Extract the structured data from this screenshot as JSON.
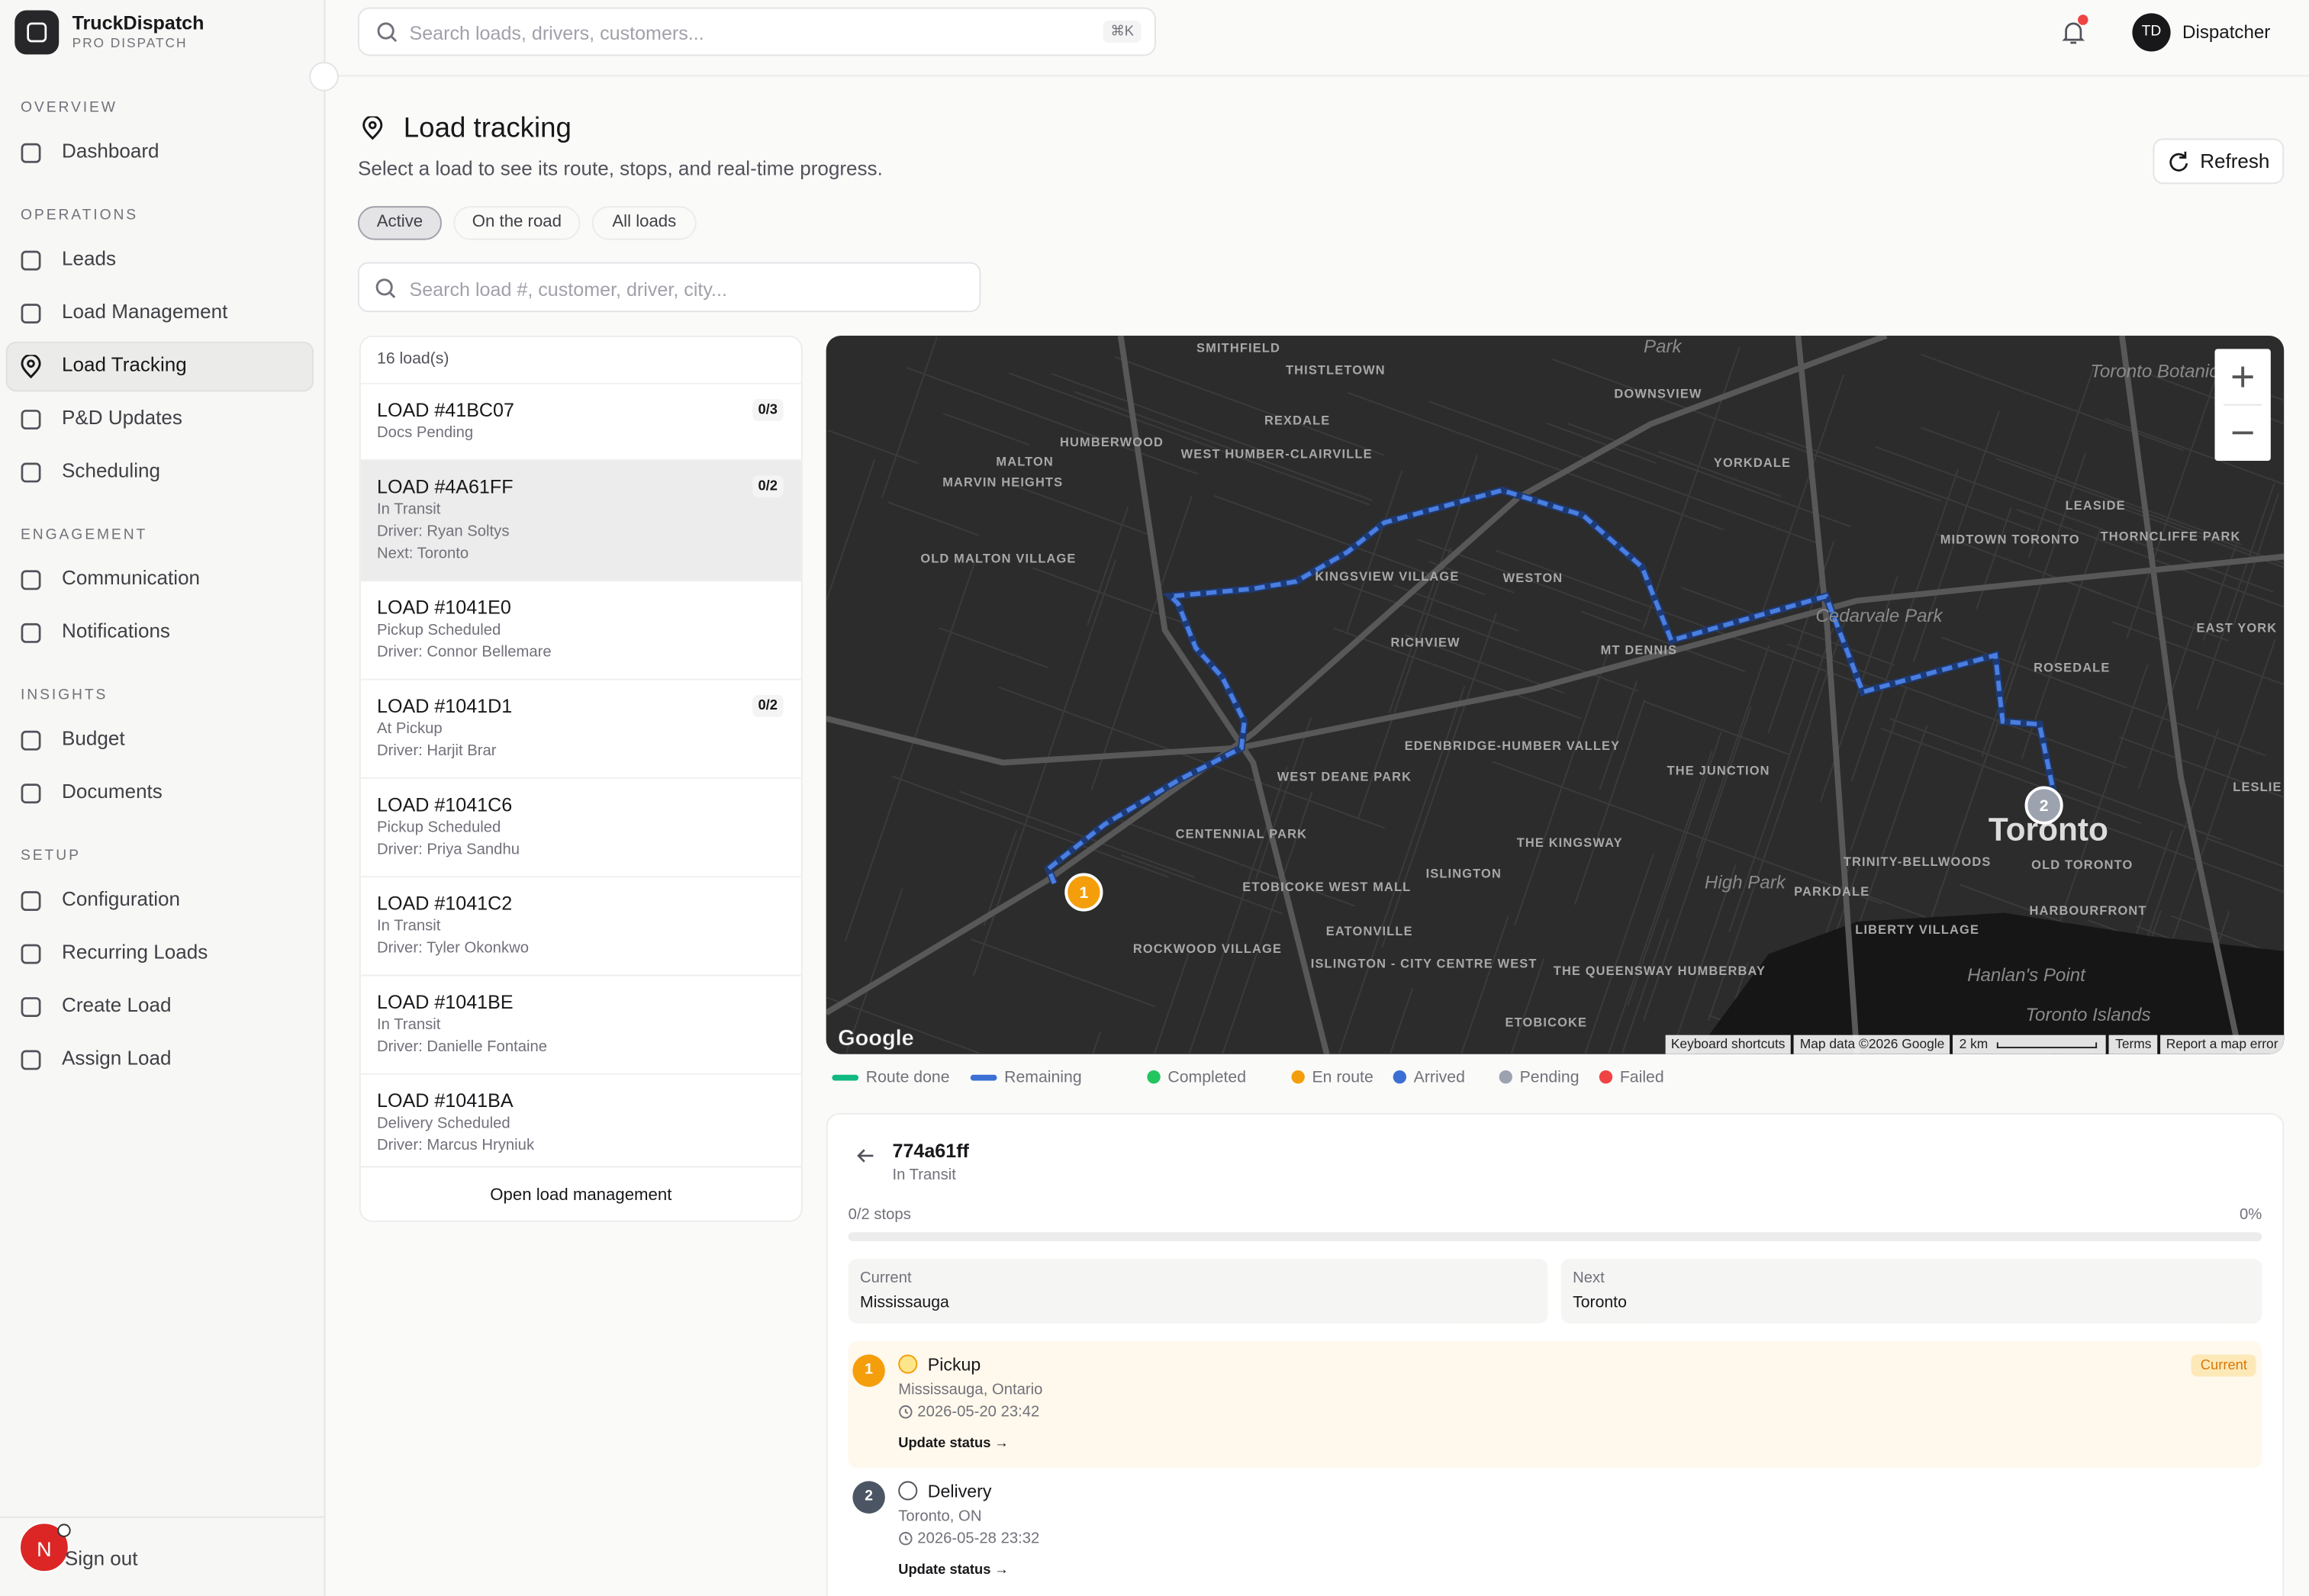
{
  "sidebar": {
    "brand": "TruckDispatch",
    "tagline": "PRO DISPATCH",
    "active_item": "Load Tracking",
    "sections": [
      {
        "title": "OVERVIEW",
        "items": [
          "Dashboard"
        ]
      },
      {
        "title": "OPERATIONS",
        "items": [
          "Leads",
          "Load Management",
          "Load Tracking",
          "P&D Updates",
          "Scheduling"
        ]
      },
      {
        "title": "ENGAGEMENT",
        "items": [
          "Communication",
          "Notifications"
        ]
      },
      {
        "title": "INSIGHTS",
        "items": [
          "Budget",
          "Documents"
        ]
      },
      {
        "title": "SETUP",
        "items": [
          "Configuration",
          "Recurring Loads",
          "Create Load",
          "Assign Load"
        ]
      }
    ],
    "avatar": "N",
    "sign_out": "Sign out"
  },
  "topbar": {
    "search_placeholder": "Search loads, drivers, customers...",
    "shortcut": "⌘K",
    "user_initials": "TD",
    "user_role": "Dispatcher"
  },
  "page": {
    "title": "Load tracking",
    "subtitle": "Select a load to see its route, stops, and real-time progress.",
    "refresh": "Refresh",
    "filters": [
      "Active",
      "On the road",
      "All loads"
    ],
    "active_filter": 0,
    "search_placeholder": "Search load #, customer, driver, city..."
  },
  "load_list": {
    "count": "16 load(s)",
    "selected": 1,
    "footer": "Open load management",
    "loads": [
      {
        "id": "LOAD #41BC07",
        "progress": "0/3",
        "lines": [
          "Docs Pending"
        ]
      },
      {
        "id": "LOAD #4A61FF",
        "progress": "0/2",
        "lines": [
          "In Transit",
          "Driver: Ryan Soltys",
          "Next: Toronto"
        ]
      },
      {
        "id": "LOAD #1041E0",
        "lines": [
          "Pickup Scheduled",
          "Driver: Connor Bellemare"
        ]
      },
      {
        "id": "LOAD #1041D1",
        "progress": "0/2",
        "lines": [
          "At Pickup",
          "Driver: Harjit Brar"
        ]
      },
      {
        "id": "LOAD #1041C6",
        "lines": [
          "Pickup Scheduled",
          "Driver: Priya Sandhu"
        ]
      },
      {
        "id": "LOAD #1041C2",
        "lines": [
          "In Transit",
          "Driver: Tyler Okonkwo"
        ]
      },
      {
        "id": "LOAD #1041BE",
        "lines": [
          "In Transit",
          "Driver: Danielle Fontaine"
        ]
      },
      {
        "id": "LOAD #1041BA",
        "lines": [
          "Delivery Scheduled",
          "Driver: Marcus Hryniuk"
        ]
      }
    ]
  },
  "map": {
    "logo": "Google",
    "markers": [
      "1",
      "2"
    ],
    "labels": [
      "SMITHFIELD",
      "THISTLETOWN",
      "Park",
      "DOWNSVIEW",
      "HUMBERWOOD",
      "REXDALE",
      "WEST HUMBER-CLAIRVILLE",
      "MALTON",
      "MARVIN HEIGHTS",
      "YORKDALE",
      "Toronto Botanical Gar",
      "LEASIDE",
      "MIDTOWN TORONTO",
      "THORNCLIFFE PARK",
      "OLD MALTON VILLAGE",
      "KINGSVIEW VILLAGE",
      "WESTON",
      "Cedarvale Park",
      "EAST YORK",
      "RICHVIEW",
      "MT DENNIS",
      "ROSEDALE",
      "EDENBRIDGE-HUMBER VALLEY",
      "THE JUNCTION",
      "WEST DEANE PARK",
      "CENTENNIAL PARK",
      "THE KINGSWAY",
      "Toronto",
      "OLD TORONTO",
      "TRINITY-BELLWOODS",
      "High Park",
      "PARKDALE",
      "ISLINGTON",
      "ETOBICOKE WEST MALL",
      "EATONVILLE",
      "LIBERTY VILLAGE",
      "HARBOURFRONT",
      "ROCKWOOD VILLAGE",
      "ISLINGTON - CITY CENTRE WEST",
      "THE QUEENSWAY HUMBERBAY",
      "Hanlan's Point",
      "ETOBICOKE",
      "Toronto Islands",
      "LESLIE"
    ],
    "attribution": [
      "Keyboard shortcuts",
      "Map data ©2026 Google",
      "2 km",
      "Terms",
      "Report a map error"
    ]
  },
  "legend": [
    {
      "label": "Route done",
      "color": "#10b981",
      "kind": "line"
    },
    {
      "label": "Remaining",
      "color": "#3b6fd4",
      "kind": "line"
    },
    {
      "label": "Completed",
      "color": "#22c55e",
      "kind": "dot"
    },
    {
      "label": "En route",
      "color": "#f59e0b",
      "kind": "dot"
    },
    {
      "label": "Arrived",
      "color": "#3b6fd4",
      "kind": "dot"
    },
    {
      "label": "Pending",
      "color": "#9ca3af",
      "kind": "dot"
    },
    {
      "label": "Failed",
      "color": "#ef4444",
      "kind": "dot"
    }
  ],
  "detail": {
    "load": "774a61ff",
    "status": "In Transit",
    "stops_label": "0/2 stops",
    "progress": "0%",
    "current": {
      "label": "Current",
      "value": "Mississauga"
    },
    "next": {
      "label": "Next",
      "value": "Toronto"
    },
    "stops": [
      {
        "number": "1",
        "type": "Pickup",
        "location": "Mississauga, Ontario",
        "time": "2026-05-20 23:42",
        "action": "Update status →",
        "badge": "Current"
      },
      {
        "number": "2",
        "type": "Delivery",
        "location": "Toronto, ON",
        "time": "2026-05-28 23:32",
        "action": "Update status →"
      }
    ]
  }
}
